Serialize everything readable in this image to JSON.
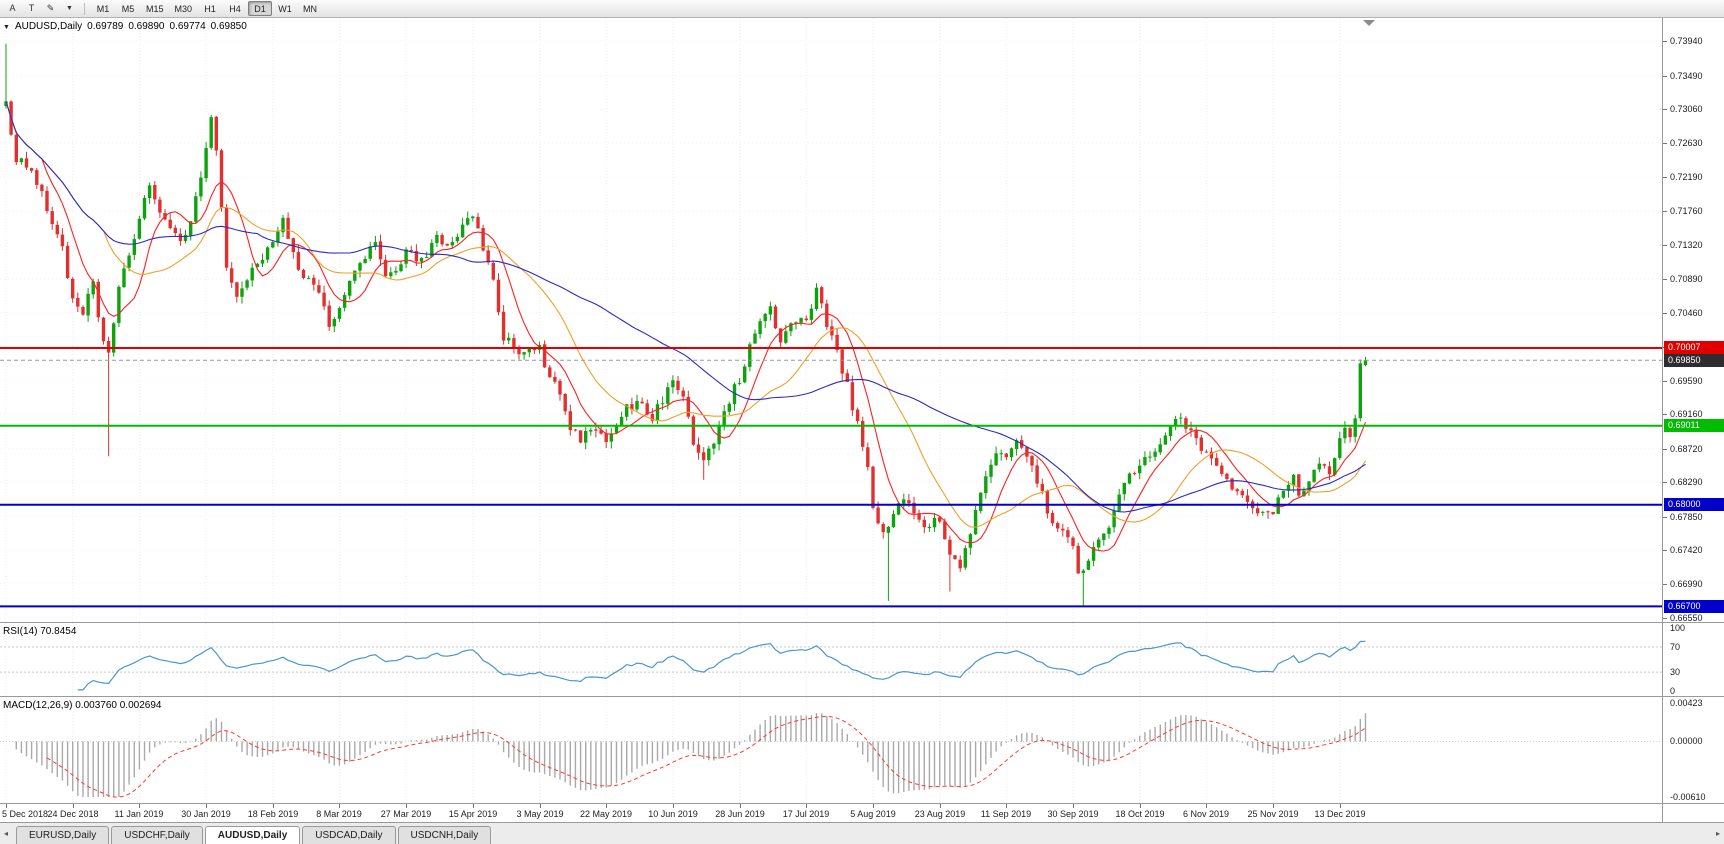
{
  "toolbar": {
    "buttons": [
      {
        "id": "annotate",
        "label": "A"
      },
      {
        "id": "text",
        "label": "T"
      }
    ],
    "draw_icon_glyph": "✎",
    "dropdown_glyph": "▼",
    "timeframes": [
      "M1",
      "M5",
      "M15",
      "M30",
      "H1",
      "H4",
      "D1",
      "W1",
      "MN"
    ],
    "active_timeframe": "D1"
  },
  "chart": {
    "header": {
      "dropdown_glyph": "▼",
      "symbol": "AUDUSD,Daily",
      "open": "0.69789",
      "high": "0.69890",
      "low": "0.69774",
      "close": "0.69850"
    },
    "price_scale_labels": [
      "0.73940",
      "0.73490",
      "0.73060",
      "0.72630",
      "0.72190",
      "0.71760",
      "0.71320",
      "0.70890",
      "0.70460",
      "0.70020",
      "0.69590",
      "0.69160",
      "0.68720",
      "0.68290",
      "0.67850",
      "0.67420",
      "0.66990",
      "0.66550"
    ],
    "date_labels": [
      "5 Dec 2018",
      "24 Dec 2018",
      "11 Jan 2019",
      "30 Jan 2019",
      "18 Feb 2019",
      "8 Mar 2019",
      "27 Mar 2019",
      "15 Apr 2019",
      "3 May 2019",
      "22 May 2019",
      "10 Jun 2019",
      "28 Jun 2019",
      "17 Jul 2019",
      "5 Aug 2019",
      "23 Aug 2019",
      "11 Sep 2019",
      "30 Sep 2019",
      "18 Oct 2019",
      "6 Nov 2019",
      "25 Nov 2019",
      "13 Dec 2019"
    ],
    "tick_indices": [
      0,
      13,
      26,
      39,
      52,
      65,
      78,
      91,
      104,
      117,
      130,
      143,
      156,
      169,
      182,
      195,
      208,
      221,
      234,
      247,
      260
    ]
  },
  "rsi": {
    "label": "RSI(14) 70.8454",
    "scale_labels": [
      "100",
      "70",
      "30",
      "0"
    ]
  },
  "macd": {
    "label": "MACD(12,26,9) 0.003760 0.002694",
    "scale_labels": [
      "0.00423",
      "0.00000",
      "-0.00610"
    ]
  },
  "tabs": [
    "EURUSD,Daily",
    "USDCHF,Daily",
    "AUDUSD,Daily",
    "USDCAD,Daily",
    "USDCNH,Daily"
  ],
  "active_tab": "AUDUSD,Daily",
  "tab_scroll_left_glyph": "◂",
  "tab_scroll_right_glyph": "▸",
  "chart_data": {
    "type": "candlestick",
    "symbol": "AUDUSD",
    "timeframe": "Daily",
    "ohlc_current": {
      "open": 0.69789,
      "high": 0.6989,
      "low": 0.69774,
      "close": 0.6985
    },
    "price_axis": {
      "min": 0.665,
      "max": 0.7423
    },
    "bar_count": 266,
    "anchors": [
      [
        0,
        0.7315
      ],
      [
        2,
        0.7242
      ],
      [
        5,
        0.7228
      ],
      [
        8,
        0.718
      ],
      [
        11,
        0.7125
      ],
      [
        13,
        0.7062
      ],
      [
        15,
        0.704
      ],
      [
        17,
        0.7088
      ],
      [
        19,
        0.7005
      ],
      [
        20,
        0.699
      ],
      [
        22,
        0.7075
      ],
      [
        24,
        0.712
      ],
      [
        26,
        0.7168
      ],
      [
        28,
        0.7205
      ],
      [
        31,
        0.716
      ],
      [
        34,
        0.7138
      ],
      [
        36,
        0.7162
      ],
      [
        39,
        0.7252
      ],
      [
        40,
        0.729
      ],
      [
        41,
        0.7248
      ],
      [
        43,
        0.7102
      ],
      [
        45,
        0.7068
      ],
      [
        47,
        0.7092
      ],
      [
        49,
        0.7112
      ],
      [
        52,
        0.7132
      ],
      [
        54,
        0.7168
      ],
      [
        56,
        0.7122
      ],
      [
        58,
        0.7092
      ],
      [
        60,
        0.7082
      ],
      [
        63,
        0.7032
      ],
      [
        65,
        0.7048
      ],
      [
        67,
        0.7092
      ],
      [
        70,
        0.7112
      ],
      [
        72,
        0.7142
      ],
      [
        74,
        0.7092
      ],
      [
        76,
        0.7098
      ],
      [
        78,
        0.7122
      ],
      [
        81,
        0.7112
      ],
      [
        84,
        0.7142
      ],
      [
        87,
        0.7132
      ],
      [
        89,
        0.7158
      ],
      [
        91,
        0.7172
      ],
      [
        93,
        0.713
      ],
      [
        95,
        0.7082
      ],
      [
        97,
        0.7012
      ],
      [
        99,
        0.7006
      ],
      [
        101,
        0.6992
      ],
      [
        104,
        0.7002
      ],
      [
        106,
        0.6962
      ],
      [
        108,
        0.6942
      ],
      [
        110,
        0.6902
      ],
      [
        112,
        0.6882
      ],
      [
        114,
        0.6896
      ],
      [
        117,
        0.688
      ],
      [
        119,
        0.6906
      ],
      [
        121,
        0.6926
      ],
      [
        124,
        0.6932
      ],
      [
        126,
        0.6912
      ],
      [
        128,
        0.6936
      ],
      [
        130,
        0.6962
      ],
      [
        132,
        0.6932
      ],
      [
        134,
        0.6882
      ],
      [
        136,
        0.6852
      ],
      [
        138,
        0.6882
      ],
      [
        140,
        0.6922
      ],
      [
        143,
        0.6962
      ],
      [
        145,
        0.7002
      ],
      [
        147,
        0.7036
      ],
      [
        149,
        0.7052
      ],
      [
        151,
        0.7012
      ],
      [
        153,
        0.7032
      ],
      [
        156,
        0.7042
      ],
      [
        158,
        0.7072
      ],
      [
        160,
        0.7032
      ],
      [
        162,
        0.6992
      ],
      [
        164,
        0.6952
      ],
      [
        166,
        0.6902
      ],
      [
        168,
        0.6852
      ],
      [
        169,
        0.6802
      ],
      [
        171,
        0.6762
      ],
      [
        173,
        0.6792
      ],
      [
        175,
        0.6812
      ],
      [
        177,
        0.6786
      ],
      [
        179,
        0.6766
      ],
      [
        181,
        0.6786
      ],
      [
        182,
        0.6776
      ],
      [
        184,
        0.6732
      ],
      [
        186,
        0.6716
      ],
      [
        188,
        0.6762
      ],
      [
        190,
        0.6812
      ],
      [
        192,
        0.6856
      ],
      [
        194,
        0.6872
      ],
      [
        195,
        0.6866
      ],
      [
        197,
        0.6882
      ],
      [
        199,
        0.6856
      ],
      [
        201,
        0.6832
      ],
      [
        203,
        0.6792
      ],
      [
        205,
        0.6772
      ],
      [
        207,
        0.6756
      ],
      [
        208,
        0.6746
      ],
      [
        209,
        0.6712
      ],
      [
        211,
        0.6726
      ],
      [
        213,
        0.6756
      ],
      [
        215,
        0.6776
      ],
      [
        217,
        0.6812
      ],
      [
        219,
        0.6836
      ],
      [
        221,
        0.6846
      ],
      [
        223,
        0.6866
      ],
      [
        225,
        0.6882
      ],
      [
        227,
        0.6896
      ],
      [
        229,
        0.6912
      ],
      [
        231,
        0.6892
      ],
      [
        233,
        0.6872
      ],
      [
        234,
        0.6866
      ],
      [
        236,
        0.6852
      ],
      [
        238,
        0.6832
      ],
      [
        240,
        0.6816
      ],
      [
        242,
        0.6802
      ],
      [
        244,
        0.6792
      ],
      [
        246,
        0.6786
      ],
      [
        247,
        0.6792
      ],
      [
        249,
        0.6816
      ],
      [
        251,
        0.6836
      ],
      [
        252,
        0.6806
      ],
      [
        254,
        0.6832
      ],
      [
        256,
        0.6856
      ],
      [
        258,
        0.6842
      ],
      [
        260,
        0.6882
      ],
      [
        261,
        0.6896
      ],
      [
        262,
        0.6886
      ],
      [
        263,
        0.6906
      ],
      [
        264,
        0.6975
      ],
      [
        265,
        0.6985
      ]
    ],
    "wick_events": [
      {
        "i": 0,
        "high": 0.739
      },
      {
        "i": 20,
        "low": 0.6862
      },
      {
        "i": 136,
        "low": 0.6832
      },
      {
        "i": 158,
        "high": 0.7082
      },
      {
        "i": 172,
        "low": 0.6677
      },
      {
        "i": 184,
        "low": 0.6689
      },
      {
        "i": 210,
        "low": 0.667
      }
    ],
    "levels": [
      {
        "name": "resistance-line",
        "price": 0.70007,
        "label": "0.70007",
        "color": "#e00000",
        "width": 2
      },
      {
        "name": "current-price-line",
        "price": 0.6985,
        "label": "0.69850",
        "color": "#9a9a9a",
        "width": 1,
        "dash": "4,3",
        "tag_color": "#2d2d2d"
      },
      {
        "name": "support-line-0690",
        "price": 0.69011,
        "label": "0.69011",
        "color": "#00bb00",
        "width": 2
      },
      {
        "name": "support-line-0680",
        "price": 0.68,
        "label": "0.68000",
        "color": "#0000cc",
        "width": 2
      },
      {
        "name": "support-line-0667",
        "price": 0.667,
        "label": "0.66700",
        "color": "#0000cc",
        "width": 2
      }
    ],
    "moving_averages": [
      {
        "name": "ma-fast-red",
        "period": 8,
        "color": "#ff2020"
      },
      {
        "name": "ma-mid-orange",
        "period": 20,
        "color": "#f0a028"
      },
      {
        "name": "ma-slow-blue",
        "period": 50,
        "color": "#2a2ac8"
      }
    ],
    "rsi": {
      "period": 14,
      "current": 70.8454,
      "levels": [
        70,
        30
      ],
      "range": [
        0,
        100
      ],
      "color": "#4a96d2"
    },
    "macd": {
      "fast": 12,
      "slow": 26,
      "signal": 9,
      "macd_value": 0.00376,
      "signal_value": 0.002694,
      "range": [
        -0.0061,
        0.00423
      ],
      "histogram_color": "#a9a9a9",
      "signal_color": "#ff3b30"
    },
    "colors": {
      "up": "#0ea30e",
      "down": "#e03131",
      "background": "#ffffff"
    }
  }
}
